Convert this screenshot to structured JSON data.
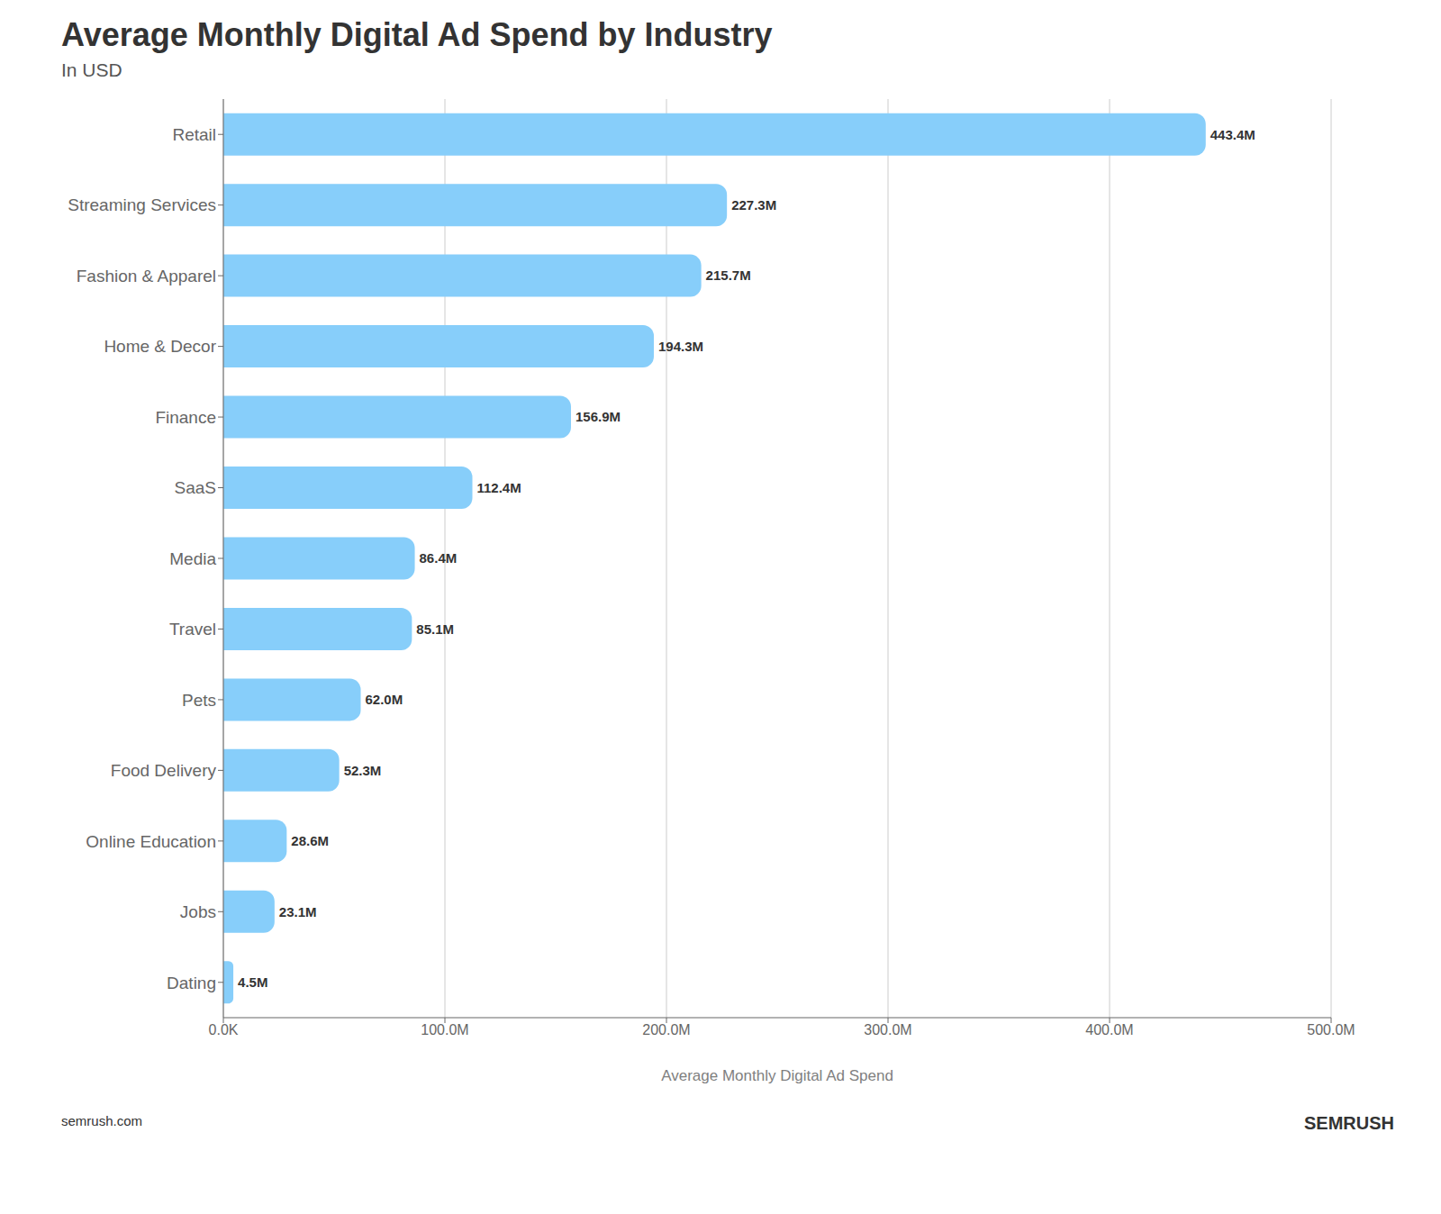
{
  "chart_data": {
    "type": "bar",
    "orientation": "horizontal",
    "title": "Average Monthly Digital Ad Spend by Industry",
    "subtitle": "In USD",
    "xlabel": "Average Monthly Digital Ad Spend",
    "categories": [
      "Retail",
      "Streaming Services",
      "Fashion & Apparel",
      "Home & Decor",
      "Finance",
      "SaaS",
      "Media",
      "Travel",
      "Pets",
      "Food Delivery",
      "Online Education",
      "Jobs",
      "Dating"
    ],
    "values": [
      443.4,
      227.3,
      215.7,
      194.3,
      156.9,
      112.4,
      86.4,
      85.1,
      62.0,
      52.3,
      28.6,
      23.1,
      4.5
    ],
    "value_labels": [
      "443.4M",
      "227.3M",
      "215.7M",
      "194.3M",
      "156.9M",
      "112.4M",
      "86.4M",
      "85.1M",
      "62.0M",
      "52.3M",
      "28.6M",
      "23.1M",
      "4.5M"
    ],
    "data_labels": true,
    "xlim": [
      0,
      500
    ],
    "xticks": [
      {
        "value": 0,
        "label": "0.0K"
      },
      {
        "value": 100,
        "label": "100.0M"
      },
      {
        "value": 200,
        "label": "200.0M"
      },
      {
        "value": 300,
        "label": "300.0M"
      },
      {
        "value": 400,
        "label": "400.0M"
      },
      {
        "value": 500,
        "label": "500.0M"
      }
    ],
    "grid": "x",
    "color": "#87CEFA",
    "annotations": [
      "semrush.com",
      "SEMRUSH"
    ]
  }
}
